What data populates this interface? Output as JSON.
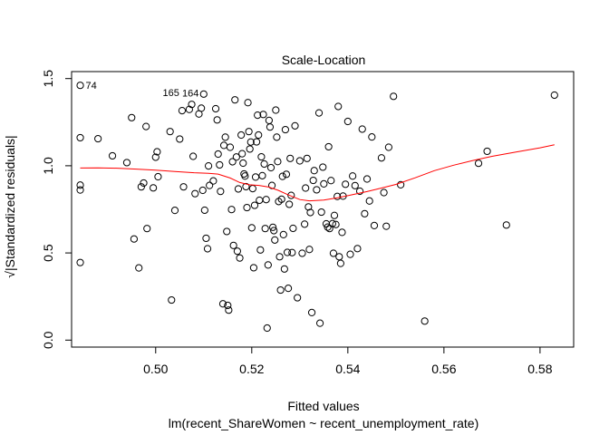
{
  "chart_data": {
    "type": "scatter",
    "title": "Scale-Location",
    "xlabel": "Fitted values",
    "subtitle": "lm(recent_ShareWomen ~ recent_unemployment_rate)",
    "ylabel": "√|Standardized residuals|",
    "xlim": [
      0.4825,
      0.587
    ],
    "ylim": [
      -0.04,
      1.54
    ],
    "x_ticks": [
      0.5,
      0.52,
      0.54,
      0.56,
      0.58
    ],
    "x_tick_labels": [
      "0.50",
      "0.52",
      "0.54",
      "0.56",
      "0.58"
    ],
    "y_ticks": [
      0.0,
      0.5,
      1.0,
      1.5
    ],
    "y_tick_labels": [
      "0.0",
      "0.5",
      "1.0",
      "1.5"
    ],
    "grid": false,
    "point_color": "#000000",
    "smooth_color": "#ff0000",
    "points": [
      [
        0.4843,
        1.461
      ],
      [
        0.4843,
        1.161
      ],
      [
        0.4843,
        0.889
      ],
      [
        0.4843,
        0.861
      ],
      [
        0.4843,
        0.445
      ],
      [
        0.488,
        1.155
      ],
      [
        0.491,
        1.057
      ],
      [
        0.494,
        1.018
      ],
      [
        0.495,
        1.276
      ],
      [
        0.4955,
        0.58
      ],
      [
        0.4965,
        0.414
      ],
      [
        0.497,
        0.879
      ],
      [
        0.4975,
        0.901
      ],
      [
        0.498,
        1.225
      ],
      [
        0.4982,
        0.64
      ],
      [
        0.4995,
        0.873
      ],
      [
        0.5,
        1.049
      ],
      [
        0.5003,
        1.08
      ],
      [
        0.5005,
        0.937
      ],
      [
        0.503,
        1.196
      ],
      [
        0.5033,
        0.23
      ],
      [
        0.504,
        0.744
      ],
      [
        0.505,
        1.153
      ],
      [
        0.5055,
        1.316
      ],
      [
        0.5058,
        0.879
      ],
      [
        0.507,
        1.323
      ],
      [
        0.5075,
        1.352
      ],
      [
        0.5078,
        1.054
      ],
      [
        0.5082,
        0.84
      ],
      [
        0.509,
        1.297
      ],
      [
        0.5095,
        1.33
      ],
      [
        0.5098,
        0.859
      ],
      [
        0.51,
        1.411
      ],
      [
        0.5102,
        0.745
      ],
      [
        0.5105,
        0.584
      ],
      [
        0.5108,
        0.524
      ],
      [
        0.511,
        0.999
      ],
      [
        0.5112,
        0.887
      ],
      [
        0.512,
        0.913
      ],
      [
        0.5125,
        1.327
      ],
      [
        0.5128,
        1.263
      ],
      [
        0.513,
        1.067
      ],
      [
        0.5133,
        1.005
      ],
      [
        0.5135,
        0.853
      ],
      [
        0.514,
        0.208
      ],
      [
        0.5142,
        1.117
      ],
      [
        0.5145,
        1.164
      ],
      [
        0.5148,
        0.623
      ],
      [
        0.515,
        0.199
      ],
      [
        0.5152,
        0.172
      ],
      [
        0.5155,
        1.106
      ],
      [
        0.5158,
        0.749
      ],
      [
        0.516,
        1.023
      ],
      [
        0.5162,
        0.543
      ],
      [
        0.5165,
        1.378
      ],
      [
        0.5168,
        1.05
      ],
      [
        0.517,
        0.51
      ],
      [
        0.5172,
        0.867
      ],
      [
        0.5175,
        0.471
      ],
      [
        0.5178,
        1.176
      ],
      [
        0.518,
        1.069
      ],
      [
        0.5182,
        1.015
      ],
      [
        0.5184,
        0.953
      ],
      [
        0.5186,
        0.941
      ],
      [
        0.5188,
        0.88
      ],
      [
        0.519,
        0.76
      ],
      [
        0.5192,
        1.362
      ],
      [
        0.5194,
        1.196
      ],
      [
        0.5196,
        1.096
      ],
      [
        0.5198,
        1.136
      ],
      [
        0.52,
        0.644
      ],
      [
        0.5202,
        0.869
      ],
      [
        0.5204,
        0.415
      ],
      [
        0.5206,
        0.773
      ],
      [
        0.5208,
        0.935
      ],
      [
        0.521,
        1.137
      ],
      [
        0.5212,
        1.29
      ],
      [
        0.5214,
        1.176
      ],
      [
        0.5216,
        0.802
      ],
      [
        0.5218,
        0.517
      ],
      [
        0.522,
        1.051
      ],
      [
        0.5222,
        0.943
      ],
      [
        0.5224,
        1.294
      ],
      [
        0.5226,
        1.01
      ],
      [
        0.5228,
        0.64
      ],
      [
        0.523,
        0.806
      ],
      [
        0.5232,
        0.069
      ],
      [
        0.5234,
        0.431
      ],
      [
        0.5236,
        1.26
      ],
      [
        0.5238,
        1.222
      ],
      [
        0.524,
        0.989
      ],
      [
        0.5242,
        0.887
      ],
      [
        0.5244,
        0.647
      ],
      [
        0.5246,
        0.628
      ],
      [
        0.5248,
        0.574
      ],
      [
        0.525,
        1.319
      ],
      [
        0.5252,
        1.164
      ],
      [
        0.5254,
        1.024
      ],
      [
        0.5256,
        0.795
      ],
      [
        0.5258,
        0.478
      ],
      [
        0.526,
        0.287
      ],
      [
        0.5262,
        0.808
      ],
      [
        0.5264,
        0.939
      ],
      [
        0.5266,
        0.605
      ],
      [
        0.5268,
        0.408
      ],
      [
        0.527,
        1.207
      ],
      [
        0.5272,
        0.951
      ],
      [
        0.5274,
        0.503
      ],
      [
        0.5276,
        0.297
      ],
      [
        0.5278,
        0.779
      ],
      [
        0.528,
        1.042
      ],
      [
        0.5282,
        0.83
      ],
      [
        0.5284,
        0.502
      ],
      [
        0.5286,
        0.641
      ],
      [
        0.529,
        1.229
      ],
      [
        0.5295,
        0.243
      ],
      [
        0.53,
        1.028
      ],
      [
        0.5305,
        0.498
      ],
      [
        0.531,
        0.665
      ],
      [
        0.5312,
        0.872
      ],
      [
        0.5315,
        1.042
      ],
      [
        0.5318,
        0.764
      ],
      [
        0.532,
        0.52
      ],
      [
        0.5322,
        0.732
      ],
      [
        0.5325,
        0.158
      ],
      [
        0.5328,
        0.916
      ],
      [
        0.533,
        0.972
      ],
      [
        0.5335,
        0.862
      ],
      [
        0.534,
        1.303
      ],
      [
        0.5342,
        0.097
      ],
      [
        0.5345,
        0.734
      ],
      [
        0.5348,
        0.992
      ],
      [
        0.535,
        0.896
      ],
      [
        0.5355,
        0.667
      ],
      [
        0.5358,
        0.648
      ],
      [
        0.536,
        1.109
      ],
      [
        0.5362,
        0.64
      ],
      [
        0.5365,
        0.915
      ],
      [
        0.5368,
        0.668
      ],
      [
        0.537,
        0.498
      ],
      [
        0.5372,
        0.715
      ],
      [
        0.5375,
        0.663
      ],
      [
        0.5378,
        0.824
      ],
      [
        0.538,
        1.34
      ],
      [
        0.5382,
        0.478
      ],
      [
        0.5385,
        0.44
      ],
      [
        0.5388,
        0.618
      ],
      [
        0.539,
        0.826
      ],
      [
        0.5395,
        0.894
      ],
      [
        0.54,
        1.254
      ],
      [
        0.5405,
        0.492
      ],
      [
        0.541,
        0.941
      ],
      [
        0.5415,
        0.886
      ],
      [
        0.542,
        0.525
      ],
      [
        0.5425,
        0.854
      ],
      [
        0.543,
        1.21
      ],
      [
        0.5435,
        0.725
      ],
      [
        0.544,
        0.924
      ],
      [
        0.5445,
        0.798
      ],
      [
        0.545,
        1.165
      ],
      [
        0.5455,
        0.657
      ],
      [
        0.547,
        1.045
      ],
      [
        0.5475,
        0.846
      ],
      [
        0.548,
        0.653
      ],
      [
        0.5485,
        1.106
      ],
      [
        0.5495,
        1.398
      ],
      [
        0.551,
        0.891
      ],
      [
        0.556,
        0.109
      ],
      [
        0.5672,
        1.014
      ],
      [
        0.569,
        1.083
      ],
      [
        0.573,
        0.66
      ],
      [
        0.583,
        1.405
      ]
    ],
    "point_labels": [
      {
        "text": "74",
        "x": 0.4843,
        "y": 1.461
      },
      {
        "text": "165",
        "x": 0.5062,
        "y": 1.415
      },
      {
        "text": "164",
        "x": 0.508,
        "y": 1.412
      }
    ],
    "smooth": [
      [
        0.4843,
        0.987
      ],
      [
        0.488,
        0.988
      ],
      [
        0.492,
        0.986
      ],
      [
        0.496,
        0.981
      ],
      [
        0.5,
        0.975
      ],
      [
        0.504,
        0.967
      ],
      [
        0.508,
        0.96
      ],
      [
        0.511,
        0.957
      ],
      [
        0.513,
        0.952
      ],
      [
        0.5155,
        0.93
      ],
      [
        0.5175,
        0.904
      ],
      [
        0.5195,
        0.891
      ],
      [
        0.5215,
        0.887
      ],
      [
        0.5235,
        0.878
      ],
      [
        0.5255,
        0.859
      ],
      [
        0.5275,
        0.834
      ],
      [
        0.53,
        0.806
      ],
      [
        0.532,
        0.799
      ],
      [
        0.535,
        0.803
      ],
      [
        0.538,
        0.817
      ],
      [
        0.541,
        0.834
      ],
      [
        0.544,
        0.852
      ],
      [
        0.547,
        0.872
      ],
      [
        0.55,
        0.893
      ],
      [
        0.554,
        0.931
      ],
      [
        0.558,
        0.972
      ],
      [
        0.562,
        1.003
      ],
      [
        0.566,
        1.03
      ],
      [
        0.57,
        1.054
      ],
      [
        0.575,
        1.079
      ],
      [
        0.58,
        1.103
      ],
      [
        0.583,
        1.12
      ]
    ]
  }
}
